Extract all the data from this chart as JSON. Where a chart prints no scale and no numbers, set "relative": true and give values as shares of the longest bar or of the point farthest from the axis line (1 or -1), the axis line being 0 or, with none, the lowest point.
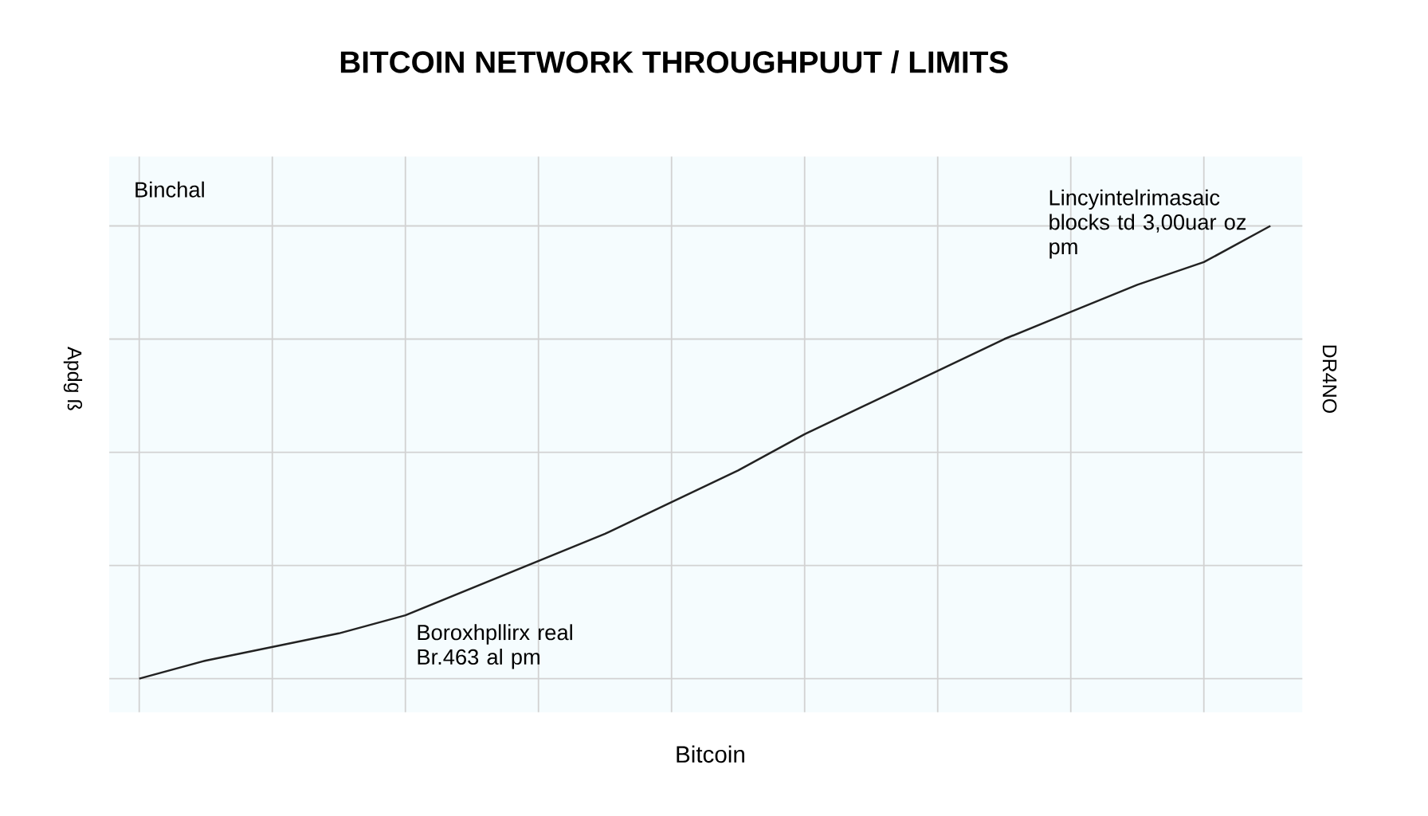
{
  "chart_data": {
    "type": "line",
    "title": "BITCOIN NETWORK THROUGHPUUT / LIMITS",
    "xlabel": "Bitcoin",
    "ylabel": "Apdg ß",
    "y2label": "DR4NO",
    "relative": true,
    "grid": true,
    "annotations": [
      "Binchal",
      "Lincyintelrimasaic blocks td 3,00uar oz pm",
      "Boroxhpllirx real Br.463 al pm"
    ],
    "categories": [
      null,
      null,
      null,
      null,
      null,
      null,
      null,
      null,
      null,
      null,
      null,
      null,
      null,
      null,
      null,
      null,
      null,
      null
    ],
    "series": [
      {
        "color": "#222222",
        "values": [
          0,
          0.04,
          0.07,
          0.1,
          0.14,
          0.2,
          0.26,
          0.32,
          0.39,
          0.46,
          0.54,
          0.61,
          0.68,
          0.75,
          0.81,
          0.87,
          0.92,
          1
        ]
      }
    ]
  }
}
